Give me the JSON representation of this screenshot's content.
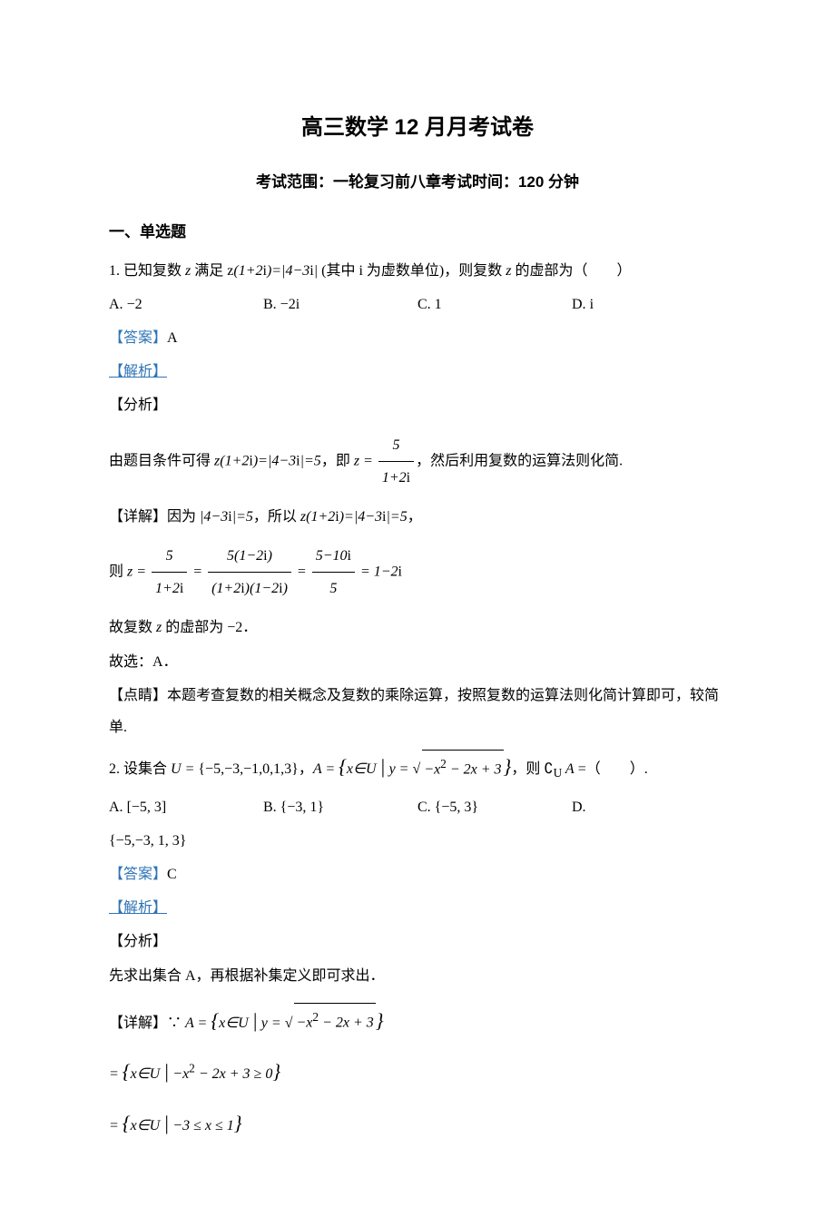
{
  "title": "高三数学 12 月月考试卷",
  "subtitle": "考试范围：一轮复习前八章考试时间：120 分钟",
  "section1_heading": "一、单选题",
  "answer_prefix": "【答案】",
  "analysis_label": "【解析】",
  "fenxi_label": "【分析】",
  "detail_label": "【详解】",
  "dianjing_label": "【点睛】",
  "choice_labels": {
    "A": "A.",
    "B": "B.",
    "C": "C.",
    "D": "D."
  },
  "q1": {
    "num": "1.",
    "stem_pre": "已知复数 ",
    "stem_mid1": " 满足 ",
    "stem_eq_left": "z(1+2i)=|4−3i|",
    "stem_mid2": " (其中 i 为虚数单位)，则复数 ",
    "stem_post": " 的虚部为（　　）",
    "optA": "−2",
    "optB": "−2i",
    "optC": "1",
    "optD": "i",
    "answer": "A",
    "fenxi_pre": "由题目条件可得 ",
    "fenxi_eq1": "z(1+2i)=|4−3i|=5",
    "fenxi_mid": "，即 ",
    "fenxi_z": "z =",
    "fenxi_frac_num": "5",
    "fenxi_frac_den": "1+2i",
    "fenxi_post": "，然后利用复数的运算法则化简.",
    "detail_pre": "因为 ",
    "detail_eq1": "|4−3i|=5",
    "detail_mid": "，所以 ",
    "detail_eq2": "z(1+2i)=|4−3i|=5",
    "detail_post": "，",
    "chain_pre": "则 ",
    "chain_z": "z =",
    "chain_f1_num": "5",
    "chain_f1_den": "1+2i",
    "chain_eq": " = ",
    "chain_f2_num": "5(1−2i)",
    "chain_f2_den": "(1+2i)(1−2i)",
    "chain_f3_num": "5−10i",
    "chain_f3_den": "5",
    "chain_result": " = 1−2i",
    "conclusion1_pre": "故复数 ",
    "conclusion1_mid": " 的虚部为 ",
    "conclusion1_val": "−2",
    "conclusion1_post": "．",
    "conclusion2": "故选：A．",
    "dianjing": "本题考查复数的相关概念及复数的乘除运算，按照复数的运算法则化简计算即可，较简单."
  },
  "q2": {
    "num": "2.",
    "stem_pre": "设集合 ",
    "U_eq": "U = {−5,−3,−1,0,1,3}",
    "stem_mid1": "，",
    "A_pre": "A = ",
    "A_cond_pre": "x∈U",
    "A_cond_y": "y =",
    "A_radicand": "−x² − 2x + 3",
    "stem_mid2": "，则 ",
    "complement": "∁",
    "complement_sub": "U",
    "complement_A": " A",
    "stem_post": " =（　　）.",
    "optA": "[−5, 3]",
    "optB": "{−3, 1}",
    "optC": "{−5, 3}",
    "optD": "{−5,−3, 1, 3}",
    "answer": "C",
    "fenxi": "先求出集合 A，再根据补集定义即可求出．",
    "detail_pre": "∵ ",
    "line2_pre": "= ",
    "line2_cond_pre": "x∈U",
    "line2_cond": "−x² − 2x + 3 ≥ 0",
    "line3_pre": "= ",
    "line3_cond_pre": "x∈U",
    "line3_cond": "−3 ≤ x ≤ 1"
  }
}
